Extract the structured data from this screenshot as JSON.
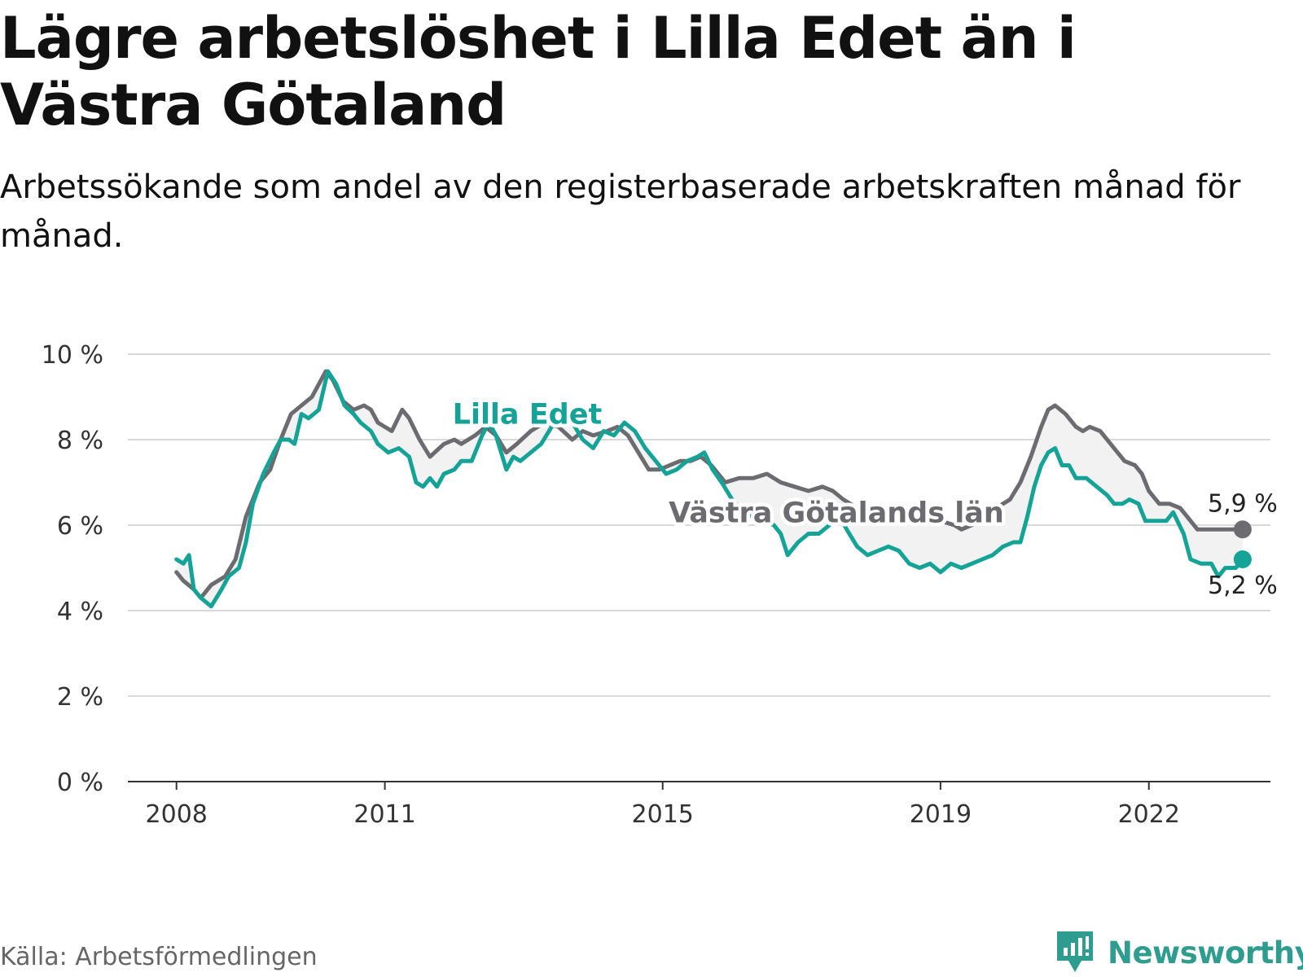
{
  "header": {
    "title": "Lägre arbetslöshet i Lilla Edet än i Västra Götaland",
    "subtitle": "Arbetssökande som andel av den registerbaserade arbetskraften månad för månad."
  },
  "footer": {
    "source": "Källa: Arbetsförmedlingen",
    "brand": "Newsworthy"
  },
  "colors": {
    "lilla_edet": "#14a396",
    "vastra_gotaland": "#6c6b70",
    "grid": "#d9d9d9",
    "axis": "#333333",
    "band": "#f2f2f2"
  },
  "chart_data": {
    "type": "line",
    "title": "Lägre arbetslöshet i Lilla Edet än i Västra Götaland",
    "subtitle": "Arbetssökande som andel av den registerbaserade arbetskraften månad för månad.",
    "xlabel": "",
    "ylabel": "",
    "ylim": [
      0,
      10
    ],
    "xlim": [
      2007.3,
      2023.75
    ],
    "y_ticks": [
      {
        "value": 0,
        "label": "0 %"
      },
      {
        "value": 2,
        "label": "2 %"
      },
      {
        "value": 4,
        "label": "4 %"
      },
      {
        "value": 6,
        "label": "6 %"
      },
      {
        "value": 8,
        "label": "8 %"
      },
      {
        "value": 10,
        "label": "10 %"
      }
    ],
    "x_ticks": [
      {
        "value": 2008,
        "label": "2008"
      },
      {
        "value": 2011,
        "label": "2011"
      },
      {
        "value": 2015,
        "label": "2015"
      },
      {
        "value": 2019,
        "label": "2019"
      },
      {
        "value": 2022,
        "label": "2022"
      }
    ],
    "grid": true,
    "legend": "inline labels",
    "series": [
      {
        "name": "Västra Götalands län",
        "color": "#6c6b70",
        "end_label": "5,9 %",
        "points": [
          [
            2008.0,
            4.9
          ],
          [
            2008.1,
            4.7
          ],
          [
            2008.25,
            4.5
          ],
          [
            2008.35,
            4.3
          ],
          [
            2008.5,
            4.6
          ],
          [
            2008.7,
            4.8
          ],
          [
            2008.85,
            5.2
          ],
          [
            2009.0,
            6.2
          ],
          [
            2009.2,
            7.0
          ],
          [
            2009.35,
            7.3
          ],
          [
            2009.5,
            8.0
          ],
          [
            2009.65,
            8.6
          ],
          [
            2009.8,
            8.8
          ],
          [
            2009.95,
            9.0
          ],
          [
            2010.05,
            9.3
          ],
          [
            2010.15,
            9.6
          ],
          [
            2010.25,
            9.4
          ],
          [
            2010.4,
            8.9
          ],
          [
            2010.55,
            8.7
          ],
          [
            2010.7,
            8.8
          ],
          [
            2010.8,
            8.7
          ],
          [
            2010.9,
            8.4
          ],
          [
            2011.1,
            8.2
          ],
          [
            2011.25,
            8.7
          ],
          [
            2011.35,
            8.5
          ],
          [
            2011.5,
            8.0
          ],
          [
            2011.65,
            7.6
          ],
          [
            2011.85,
            7.9
          ],
          [
            2012.0,
            8.0
          ],
          [
            2012.1,
            7.9
          ],
          [
            2012.3,
            8.1
          ],
          [
            2012.45,
            8.3
          ],
          [
            2012.6,
            8.1
          ],
          [
            2012.75,
            7.7
          ],
          [
            2012.9,
            7.9
          ],
          [
            2013.1,
            8.2
          ],
          [
            2013.3,
            8.4
          ],
          [
            2013.5,
            8.3
          ],
          [
            2013.7,
            8.0
          ],
          [
            2013.85,
            8.2
          ],
          [
            2014.0,
            8.1
          ],
          [
            2014.2,
            8.2
          ],
          [
            2014.35,
            8.3
          ],
          [
            2014.5,
            8.1
          ],
          [
            2014.65,
            7.7
          ],
          [
            2014.8,
            7.3
          ],
          [
            2014.95,
            7.3
          ],
          [
            2015.1,
            7.4
          ],
          [
            2015.25,
            7.5
          ],
          [
            2015.4,
            7.5
          ],
          [
            2015.55,
            7.6
          ],
          [
            2015.7,
            7.4
          ],
          [
            2015.9,
            7.0
          ],
          [
            2016.1,
            7.1
          ],
          [
            2016.3,
            7.1
          ],
          [
            2016.5,
            7.2
          ],
          [
            2016.7,
            7.0
          ],
          [
            2016.9,
            6.9
          ],
          [
            2017.1,
            6.8
          ],
          [
            2017.3,
            6.9
          ],
          [
            2017.45,
            6.8
          ],
          [
            2017.6,
            6.6
          ],
          [
            2017.8,
            6.4
          ],
          [
            2018.0,
            6.3
          ],
          [
            2018.2,
            6.2
          ],
          [
            2018.4,
            6.1
          ],
          [
            2018.6,
            6.1
          ],
          [
            2018.8,
            6.2
          ],
          [
            2019.0,
            6.1
          ],
          [
            2019.2,
            6.0
          ],
          [
            2019.3,
            5.9
          ],
          [
            2019.45,
            6.0
          ],
          [
            2019.6,
            6.3
          ],
          [
            2019.8,
            6.4
          ],
          [
            2020.0,
            6.6
          ],
          [
            2020.15,
            7.0
          ],
          [
            2020.3,
            7.6
          ],
          [
            2020.45,
            8.3
          ],
          [
            2020.55,
            8.7
          ],
          [
            2020.65,
            8.8
          ],
          [
            2020.8,
            8.6
          ],
          [
            2020.95,
            8.3
          ],
          [
            2021.05,
            8.2
          ],
          [
            2021.15,
            8.3
          ],
          [
            2021.3,
            8.2
          ],
          [
            2021.45,
            7.9
          ],
          [
            2021.65,
            7.5
          ],
          [
            2021.8,
            7.4
          ],
          [
            2021.9,
            7.2
          ],
          [
            2022.0,
            6.8
          ],
          [
            2022.15,
            6.5
          ],
          [
            2022.3,
            6.5
          ],
          [
            2022.45,
            6.4
          ],
          [
            2022.55,
            6.2
          ],
          [
            2022.7,
            5.9
          ],
          [
            2022.9,
            5.9
          ],
          [
            2023.1,
            5.9
          ],
          [
            2023.25,
            5.9
          ],
          [
            2023.35,
            5.9
          ]
        ]
      },
      {
        "name": "Lilla Edet",
        "color": "#14a396",
        "end_label": "5,2 %",
        "points": [
          [
            2008.0,
            5.2
          ],
          [
            2008.1,
            5.1
          ],
          [
            2008.18,
            5.3
          ],
          [
            2008.25,
            4.5
          ],
          [
            2008.35,
            4.3
          ],
          [
            2008.5,
            4.1
          ],
          [
            2008.65,
            4.5
          ],
          [
            2008.75,
            4.8
          ],
          [
            2008.9,
            5.0
          ],
          [
            2009.0,
            5.6
          ],
          [
            2009.1,
            6.5
          ],
          [
            2009.25,
            7.2
          ],
          [
            2009.4,
            7.7
          ],
          [
            2009.5,
            8.0
          ],
          [
            2009.62,
            8.0
          ],
          [
            2009.7,
            7.9
          ],
          [
            2009.8,
            8.6
          ],
          [
            2009.9,
            8.5
          ],
          [
            2010.05,
            8.7
          ],
          [
            2010.18,
            9.6
          ],
          [
            2010.3,
            9.3
          ],
          [
            2010.42,
            8.8
          ],
          [
            2010.55,
            8.6
          ],
          [
            2010.65,
            8.4
          ],
          [
            2010.8,
            8.2
          ],
          [
            2010.9,
            7.9
          ],
          [
            2011.05,
            7.7
          ],
          [
            2011.2,
            7.8
          ],
          [
            2011.35,
            7.6
          ],
          [
            2011.45,
            7.0
          ],
          [
            2011.55,
            6.9
          ],
          [
            2011.65,
            7.1
          ],
          [
            2011.75,
            6.9
          ],
          [
            2011.85,
            7.2
          ],
          [
            2012.0,
            7.3
          ],
          [
            2012.1,
            7.5
          ],
          [
            2012.25,
            7.5
          ],
          [
            2012.4,
            8.1
          ],
          [
            2012.5,
            8.4
          ],
          [
            2012.6,
            8.1
          ],
          [
            2012.75,
            7.3
          ],
          [
            2012.85,
            7.6
          ],
          [
            2012.95,
            7.5
          ],
          [
            2013.1,
            7.7
          ],
          [
            2013.25,
            7.9
          ],
          [
            2013.4,
            8.3
          ],
          [
            2013.55,
            8.5
          ],
          [
            2013.7,
            8.4
          ],
          [
            2013.85,
            8.0
          ],
          [
            2014.0,
            7.8
          ],
          [
            2014.15,
            8.2
          ],
          [
            2014.3,
            8.1
          ],
          [
            2014.45,
            8.4
          ],
          [
            2014.6,
            8.2
          ],
          [
            2014.75,
            7.8
          ],
          [
            2014.9,
            7.5
          ],
          [
            2015.05,
            7.2
          ],
          [
            2015.2,
            7.3
          ],
          [
            2015.35,
            7.5
          ],
          [
            2015.5,
            7.6
          ],
          [
            2015.6,
            7.7
          ],
          [
            2015.72,
            7.3
          ],
          [
            2015.85,
            7.0
          ],
          [
            2016.0,
            6.6
          ],
          [
            2016.15,
            6.3
          ],
          [
            2016.3,
            6.2
          ],
          [
            2016.45,
            6.1
          ],
          [
            2016.6,
            6.0
          ],
          [
            2016.7,
            5.8
          ],
          [
            2016.8,
            5.3
          ],
          [
            2016.95,
            5.6
          ],
          [
            2017.1,
            5.8
          ],
          [
            2017.25,
            5.8
          ],
          [
            2017.4,
            6.0
          ],
          [
            2017.55,
            6.2
          ],
          [
            2017.65,
            5.9
          ],
          [
            2017.8,
            5.5
          ],
          [
            2017.95,
            5.3
          ],
          [
            2018.1,
            5.4
          ],
          [
            2018.25,
            5.5
          ],
          [
            2018.4,
            5.4
          ],
          [
            2018.55,
            5.1
          ],
          [
            2018.7,
            5.0
          ],
          [
            2018.85,
            5.1
          ],
          [
            2019.0,
            4.9
          ],
          [
            2019.15,
            5.1
          ],
          [
            2019.3,
            5.0
          ],
          [
            2019.45,
            5.1
          ],
          [
            2019.6,
            5.2
          ],
          [
            2019.75,
            5.3
          ],
          [
            2019.9,
            5.5
          ],
          [
            2020.05,
            5.6
          ],
          [
            2020.15,
            5.6
          ],
          [
            2020.25,
            6.2
          ],
          [
            2020.35,
            6.9
          ],
          [
            2020.45,
            7.4
          ],
          [
            2020.55,
            7.7
          ],
          [
            2020.65,
            7.8
          ],
          [
            2020.75,
            7.4
          ],
          [
            2020.85,
            7.4
          ],
          [
            2020.95,
            7.1
          ],
          [
            2021.1,
            7.1
          ],
          [
            2021.25,
            6.9
          ],
          [
            2021.4,
            6.7
          ],
          [
            2021.5,
            6.5
          ],
          [
            2021.62,
            6.5
          ],
          [
            2021.72,
            6.6
          ],
          [
            2021.85,
            6.5
          ],
          [
            2021.95,
            6.1
          ],
          [
            2022.1,
            6.1
          ],
          [
            2022.25,
            6.1
          ],
          [
            2022.35,
            6.3
          ],
          [
            2022.5,
            5.8
          ],
          [
            2022.6,
            5.2
          ],
          [
            2022.75,
            5.1
          ],
          [
            2022.9,
            5.1
          ],
          [
            2023.0,
            4.8
          ],
          [
            2023.1,
            5.0
          ],
          [
            2023.25,
            5.0
          ],
          [
            2023.35,
            5.2
          ]
        ]
      }
    ]
  }
}
